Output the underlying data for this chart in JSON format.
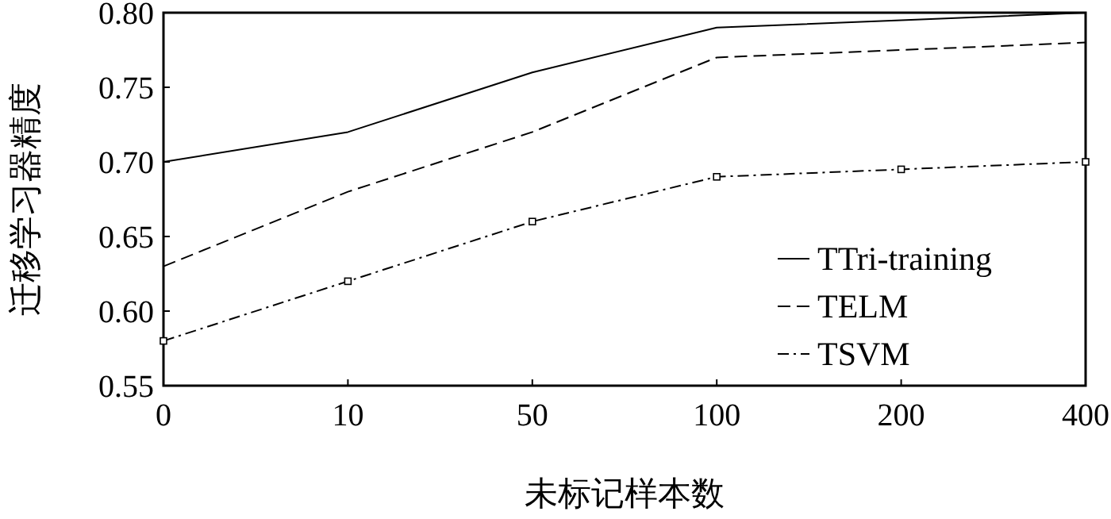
{
  "chart_data": {
    "type": "line",
    "xlabel": "未标记样本数",
    "ylabel": "迁移学习器精度",
    "categories": [
      "0",
      "10",
      "50",
      "100",
      "200",
      "400"
    ],
    "series": [
      {
        "name": "TTri-training",
        "color": "#000000",
        "line_style": "solid",
        "marker": "none",
        "values": [
          0.7,
          0.72,
          0.76,
          0.79,
          0.795,
          0.8
        ]
      },
      {
        "name": "TELM",
        "color": "#000000",
        "line_style": "dashed",
        "marker": "none",
        "values": [
          0.63,
          0.68,
          0.72,
          0.77,
          0.775,
          0.78
        ]
      },
      {
        "name": "TSVM",
        "color": "#000000",
        "line_style": "dashdot",
        "marker": "square",
        "values": [
          0.58,
          0.62,
          0.66,
          0.69,
          0.695,
          0.7
        ]
      }
    ],
    "ylim": [
      0.55,
      0.8
    ],
    "yticks": [
      0.55,
      {
        "value": 0.6,
        "label": "0.60"
      },
      0.65,
      {
        "value": 0.7,
        "label": "0.70"
      },
      0.75,
      {
        "value": 0.8,
        "label": "0.80"
      }
    ],
    "grid": false,
    "legend": "bottom right"
  }
}
